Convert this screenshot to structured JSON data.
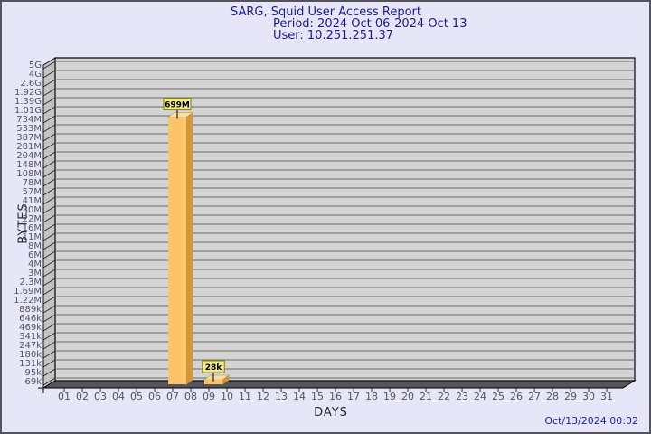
{
  "header": {
    "title": "SARG, Squid User Access Report",
    "period": "Period: 2024 Oct 06-2024 Oct 13",
    "user": "User: 10.251.251.37"
  },
  "footer": {
    "generated": "Oct/13/2024 00:02"
  },
  "colors": {
    "page_bg": "#e6e6f8",
    "plot_bg": "#d4d4d4",
    "wall": "#c4c4c4",
    "floor": "#54545a",
    "gridline": "#6a6a6a",
    "bar_face": "#fbc469",
    "bar_side": "#d2973b",
    "bar_top": "#f8dfa9",
    "label_box_bg": "#efe98f",
    "label_box_border": "#8b8000",
    "title_text": "#1a1a99",
    "timestamp_text": "#2222b2"
  },
  "chart_data": {
    "type": "bar",
    "title": "SARG, Squid User Access Report",
    "subtitle_lines": [
      "Period: 2024 Oct 06-2024 Oct 13",
      "User: 10.251.251.37"
    ],
    "xlabel": "DAYS",
    "ylabel": "BYTES",
    "scale": "log",
    "axis_range": [
      "69k",
      "5G"
    ],
    "grid": true,
    "x_categories": [
      "01",
      "02",
      "03",
      "04",
      "05",
      "06",
      "07",
      "08",
      "09",
      "10",
      "11",
      "12",
      "13",
      "14",
      "15",
      "16",
      "17",
      "18",
      "19",
      "20",
      "21",
      "22",
      "23",
      "24",
      "25",
      "26",
      "27",
      "28",
      "29",
      "30",
      "31"
    ],
    "y_ticks": [
      "5G",
      "4G",
      "2.6G",
      "1.92G",
      "1.39G",
      "1.01G",
      "734M",
      "533M",
      "387M",
      "281M",
      "204M",
      "148M",
      "108M",
      "78M",
      "57M",
      "41M",
      "30M",
      "22M",
      "16M",
      "11M",
      "8M",
      "6M",
      "4M",
      "3M",
      "2.3M",
      "1.69M",
      "1.22M",
      "889k",
      "646k",
      "469k",
      "341k",
      "247k",
      "180k",
      "131k",
      "95k",
      "69k"
    ],
    "bars": [
      {
        "day": 7,
        "value_label": "699M",
        "value_bytes": 699000000
      },
      {
        "day": 9,
        "value_label": "28k",
        "value_bytes": 28000
      }
    ]
  }
}
